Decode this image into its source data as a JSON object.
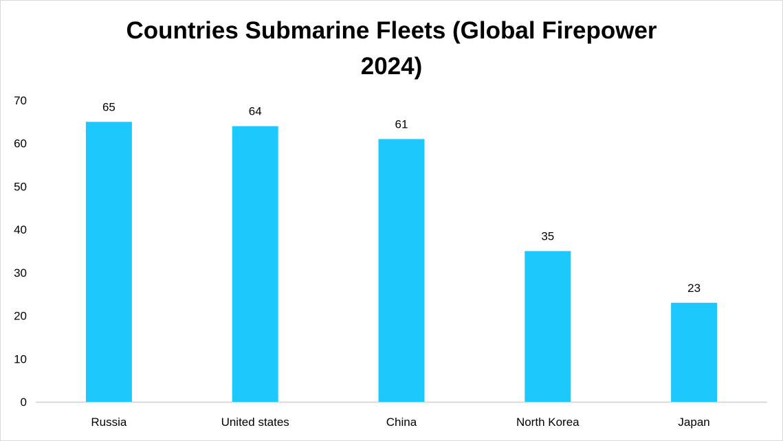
{
  "chart_data": {
    "type": "bar",
    "title_line1": "Countries Submarine Fleets (Global Firepower",
    "title_line2": "2024)",
    "categories": [
      "Russia",
      "United states",
      "China",
      "North Korea",
      "Japan"
    ],
    "values": [
      65,
      64,
      61,
      35,
      23
    ],
    "data_labels": [
      "65",
      "64",
      "61",
      "35",
      "23"
    ],
    "xlabel": "",
    "ylabel": "",
    "ylim": [
      0,
      70
    ],
    "yticks": [
      0,
      10,
      20,
      30,
      40,
      50,
      60,
      70
    ],
    "grid": false,
    "legend": "none",
    "bar_color": "#1CC8FC"
  }
}
